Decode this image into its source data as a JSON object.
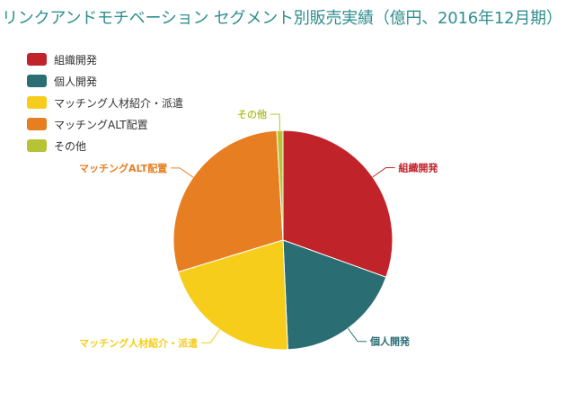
{
  "chart_data": {
    "type": "pie",
    "title": "リンクアンドモチベーション セグメント別販売実績（億円、2016年12月期）",
    "slices": [
      {
        "name": "組織開発",
        "value": 30.5,
        "color": "#c0232a"
      },
      {
        "name": "個人開発",
        "value": 18.8,
        "color": "#2a6e74"
      },
      {
        "name": "マッチング人材紹介・派遣",
        "value": 21.0,
        "color": "#f6cd1a"
      },
      {
        "name": "マッチングALT配置",
        "value": 28.8,
        "color": "#e77f22"
      },
      {
        "name": "その他",
        "value": 0.9,
        "color": "#b5c334"
      }
    ],
    "legend_position": "top-left"
  }
}
